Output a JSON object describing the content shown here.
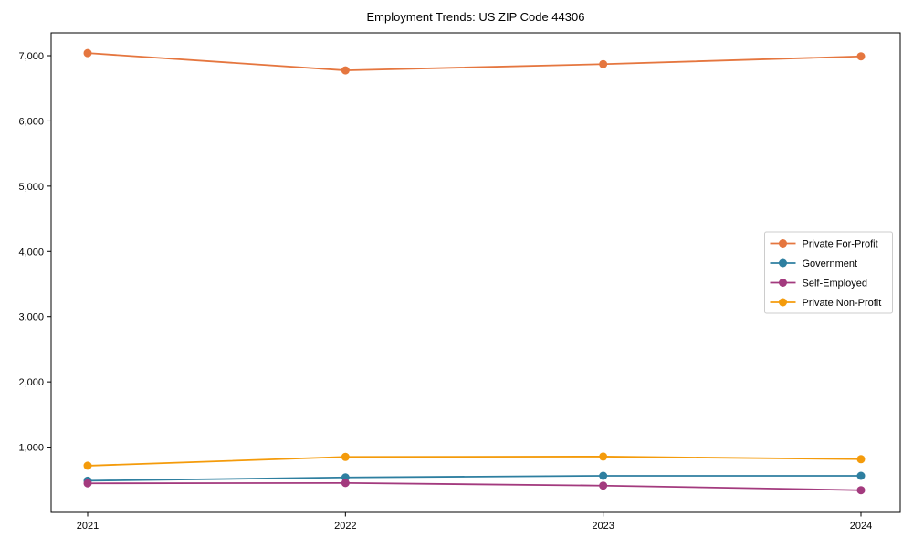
{
  "title": "Employment Trends: US ZIP Code 44306",
  "chart_data": {
    "type": "line",
    "title": "Employment Trends: US ZIP Code 44306",
    "x": [
      2021,
      2022,
      2023,
      2024
    ],
    "xtick_labels": [
      "2021",
      "2022",
      "2023",
      "2024"
    ],
    "yticks": [
      1000,
      2000,
      3000,
      4000,
      5000,
      6000,
      7000
    ],
    "ytick_labels": [
      "1,000",
      "2,000",
      "3,000",
      "4,000",
      "5,000",
      "6,000",
      "7,000"
    ],
    "ylim": [
      0,
      7350
    ],
    "grid": false,
    "legend_position": "center-right",
    "xlabel": "",
    "ylabel": "",
    "series": [
      {
        "name": "Private For-Profit",
        "color": "#e5763f",
        "values": [
          7040,
          6775,
          6870,
          6990
        ]
      },
      {
        "name": "Government",
        "color": "#2e7fa0",
        "values": [
          485,
          535,
          560,
          560
        ]
      },
      {
        "name": "Self-Employed",
        "color": "#a33a7e",
        "values": [
          445,
          450,
          410,
          340
        ]
      },
      {
        "name": "Private Non-Profit",
        "color": "#f49b0b",
        "values": [
          715,
          850,
          855,
          815
        ]
      }
    ],
    "colors": {
      "spine": "#000000",
      "legend_border": "#cccccc",
      "legend_background": "#ffffff",
      "text": "#000000"
    }
  }
}
